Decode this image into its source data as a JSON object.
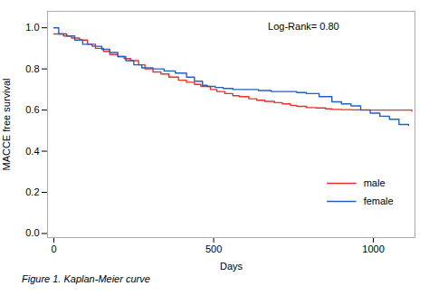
{
  "chart_data": {
    "type": "step",
    "xlabel": "Days",
    "ylabel": "MACCE free survival",
    "xlim": [
      -20,
      1130
    ],
    "ylim": [
      -0.02,
      1.08
    ],
    "xticks": [
      0,
      500,
      1000
    ],
    "yticks": [
      {
        "value": 0,
        "label": "0.0"
      },
      0.2,
      0.4,
      0.6,
      0.8,
      {
        "value": 1.0,
        "label": "1.0"
      }
    ],
    "annotation": "Log-Rank= 0.80",
    "caption": "Figure 1. Kaplan-Meier curve",
    "legend": "lower right",
    "grid": false,
    "series": [
      {
        "name": "male",
        "color": "#e8302a",
        "x": [
          0,
          30,
          55,
          80,
          105,
          130,
          155,
          175,
          200,
          220,
          240,
          265,
          285,
          310,
          335,
          360,
          390,
          415,
          440,
          460,
          490,
          510,
          535,
          560,
          580,
          610,
          635,
          660,
          690,
          715,
          740,
          760,
          790,
          820,
          850,
          870,
          900,
          930,
          960,
          990,
          1010,
          1040,
          1070,
          1100,
          1120
        ],
        "values": [
          0.97,
          0.96,
          0.95,
          0.94,
          0.92,
          0.9,
          0.885,
          0.87,
          0.86,
          0.85,
          0.84,
          0.82,
          0.8,
          0.785,
          0.775,
          0.76,
          0.745,
          0.735,
          0.725,
          0.715,
          0.7,
          0.69,
          0.68,
          0.67,
          0.665,
          0.655,
          0.648,
          0.642,
          0.636,
          0.63,
          0.623,
          0.618,
          0.612,
          0.61,
          0.606,
          0.603,
          0.602,
          0.601,
          0.601,
          0.6,
          0.6,
          0.6,
          0.6,
          0.6,
          0.595
        ]
      },
      {
        "name": "female",
        "color": "#2060c0",
        "x": [
          0,
          15,
          40,
          65,
          90,
          120,
          150,
          175,
          200,
          225,
          250,
          275,
          310,
          345,
          380,
          415,
          440,
          465,
          480,
          505,
          530,
          560,
          600,
          640,
          680,
          720,
          760,
          790,
          830,
          870,
          900,
          930,
          960,
          990,
          1020,
          1050,
          1080,
          1110
        ],
        "values": [
          1.0,
          0.97,
          0.96,
          0.94,
          0.92,
          0.91,
          0.895,
          0.88,
          0.86,
          0.84,
          0.82,
          0.805,
          0.8,
          0.79,
          0.78,
          0.76,
          0.74,
          0.72,
          0.715,
          0.71,
          0.705,
          0.7,
          0.7,
          0.695,
          0.69,
          0.69,
          0.685,
          0.68,
          0.665,
          0.64,
          0.63,
          0.62,
          0.6,
          0.585,
          0.57,
          0.555,
          0.53,
          0.525
        ]
      }
    ]
  }
}
